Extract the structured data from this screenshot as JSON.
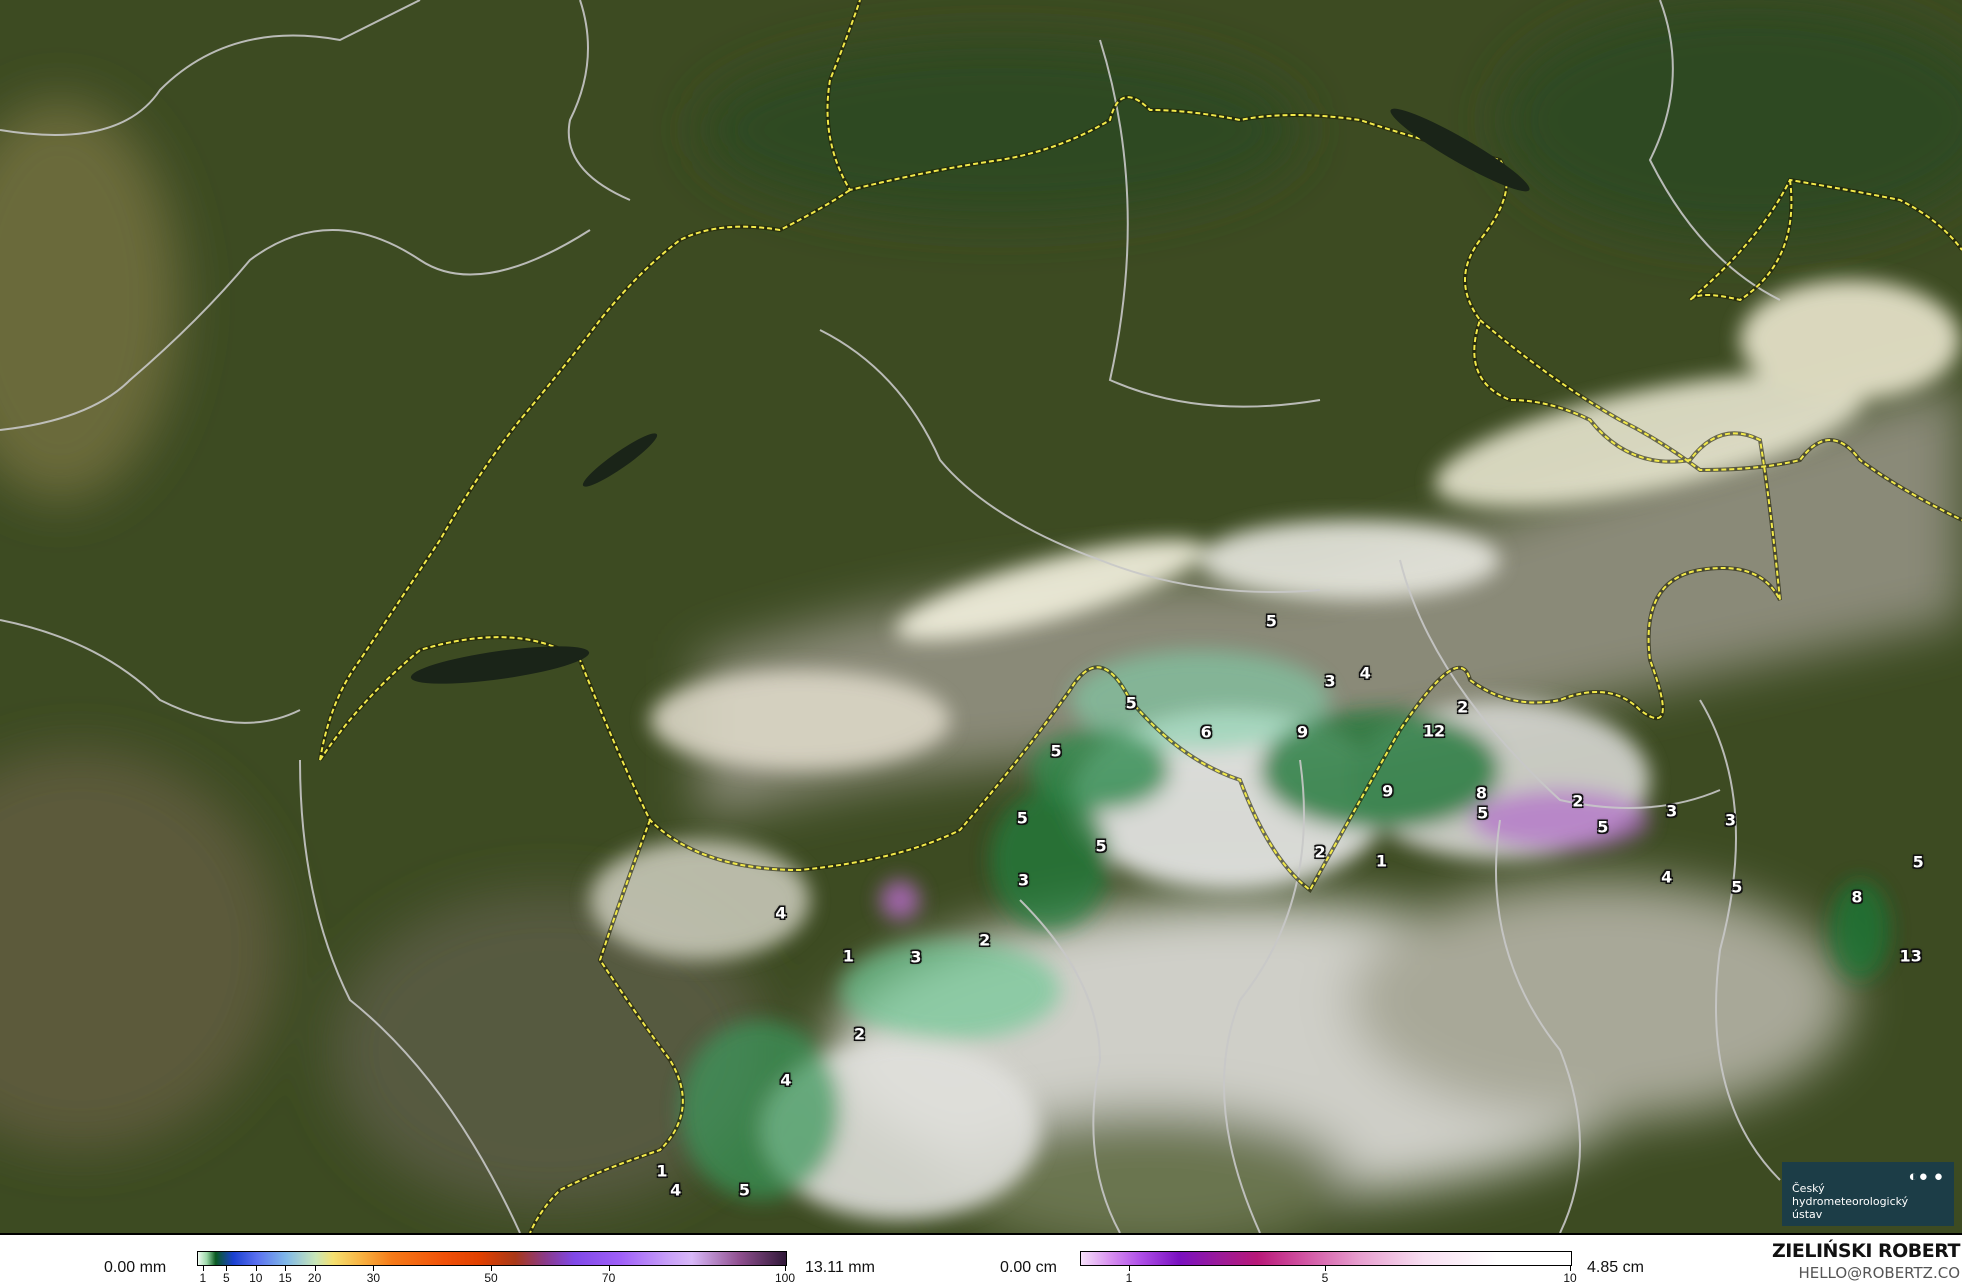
{
  "map": {
    "labels": [
      "5",
      "3",
      "4",
      "5",
      "6",
      "9",
      "12",
      "2",
      "5",
      "9",
      "8",
      "5",
      "2",
      "5",
      "3",
      "3",
      "5",
      "5",
      "2",
      "1",
      "3",
      "4",
      "5",
      "5",
      "8",
      "4",
      "2",
      "1",
      "3",
      "13",
      "2",
      "4",
      "1",
      "4",
      "5"
    ],
    "colors": {
      "border_country": "#f2e94a",
      "border_region": "#c8c8c8",
      "vegetation": "#3d4b22",
      "snow": "#f4f2e0"
    }
  },
  "logo": {
    "line1": "Český",
    "line2": "hydrometeorologický",
    "line3": "ústav"
  },
  "legend": {
    "rain": {
      "min_label": "0.00 mm",
      "max_label": "13.11 mm",
      "ticks": [
        "1",
        "5",
        "10",
        "15",
        "20",
        "30",
        "50",
        "70",
        "100"
      ],
      "tick_values": [
        1,
        5,
        10,
        15,
        20,
        30,
        50,
        70,
        100
      ]
    },
    "snow": {
      "min_label": "0.00 cm",
      "max_label": "4.85 cm",
      "ticks": [
        "1",
        "5",
        "10"
      ],
      "tick_values": [
        1,
        5,
        10
      ]
    }
  },
  "credit": {
    "author": "ZIELIŃSKI ROBERT",
    "email": "HELLO@ROBERTZ.CO"
  }
}
